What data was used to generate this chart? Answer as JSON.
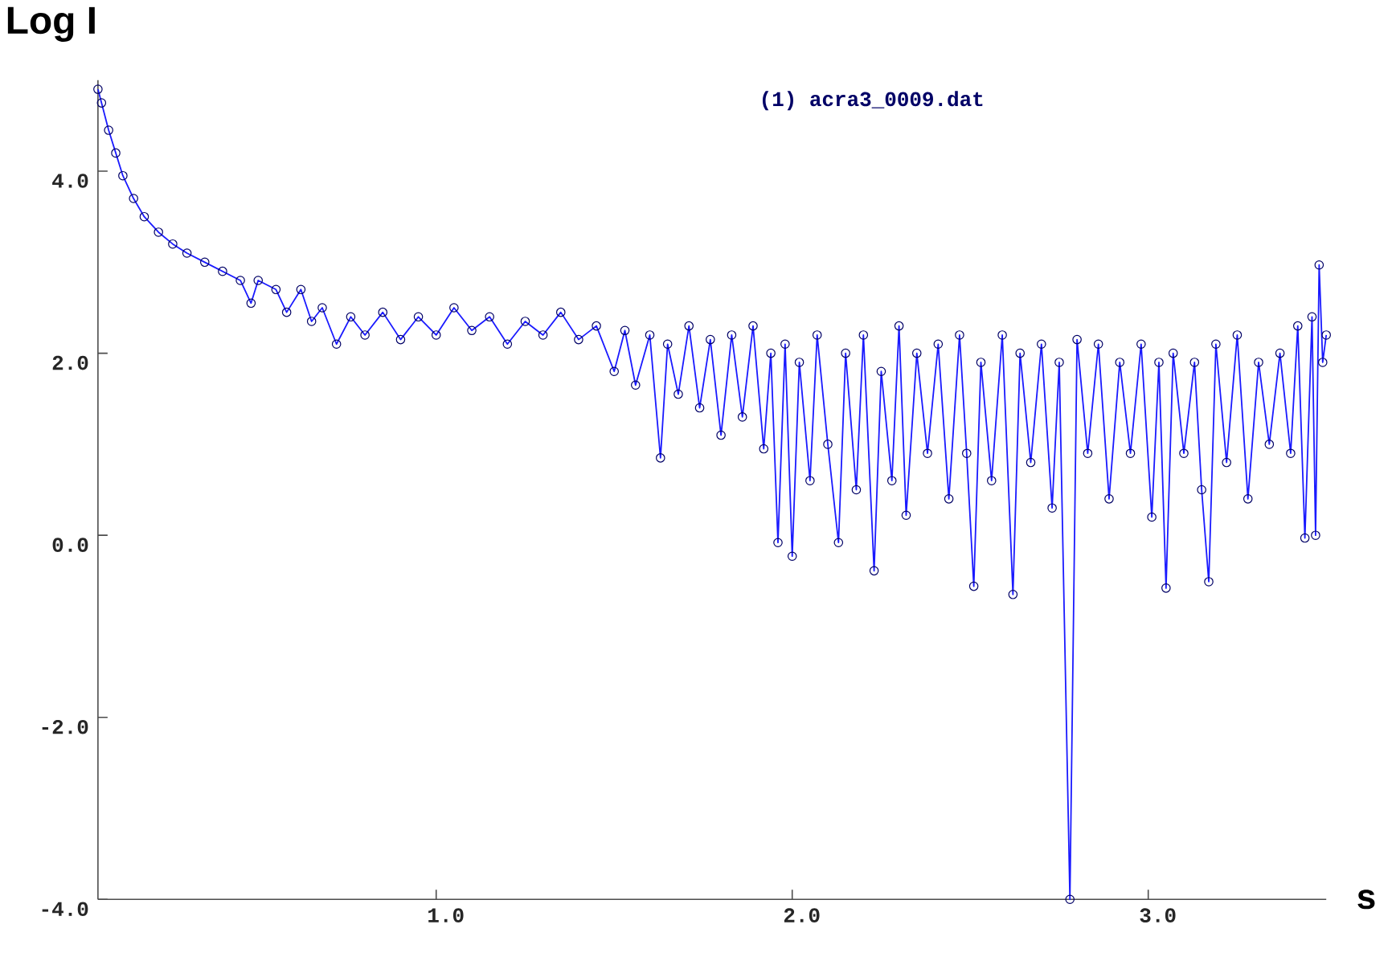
{
  "chart_data": {
    "type": "line",
    "xlabel": "s",
    "ylabel": "Log I",
    "xlim": [
      0.05,
      3.5
    ],
    "ylim": [
      -4.0,
      5.0
    ],
    "xticks": [
      {
        "value": 1,
        "label": "1.0"
      },
      {
        "value": 2,
        "label": "2.0"
      },
      {
        "value": 3,
        "label": "3.0"
      }
    ],
    "yticks": [
      {
        "value": -4,
        "label": "-4.0"
      },
      {
        "value": -2,
        "label": "-2.0"
      },
      {
        "value": 0,
        "label": "0.0"
      },
      {
        "value": 2,
        "label": "2.0"
      },
      {
        "value": 4,
        "label": "4.0"
      }
    ],
    "grid": false,
    "legend": "top",
    "marker": "circle",
    "line_style": "solid",
    "series": [
      {
        "name": "(1) acra3_0009.dat",
        "color": "#1a1aff",
        "x": [
          0.05,
          0.06,
          0.08,
          0.1,
          0.12,
          0.15,
          0.18,
          0.22,
          0.26,
          0.3,
          0.35,
          0.4,
          0.45,
          0.48,
          0.5,
          0.55,
          0.58,
          0.62,
          0.65,
          0.68,
          0.72,
          0.76,
          0.8,
          0.85,
          0.9,
          0.95,
          1.0,
          1.05,
          1.1,
          1.15,
          1.2,
          1.25,
          1.3,
          1.35,
          1.4,
          1.45,
          1.5,
          1.53,
          1.56,
          1.6,
          1.63,
          1.65,
          1.68,
          1.71,
          1.74,
          1.77,
          1.8,
          1.83,
          1.86,
          1.89,
          1.92,
          1.94,
          1.96,
          1.98,
          2.0,
          2.02,
          2.05,
          2.07,
          2.1,
          2.13,
          2.15,
          2.18,
          2.2,
          2.23,
          2.25,
          2.28,
          2.3,
          2.32,
          2.35,
          2.38,
          2.41,
          2.44,
          2.47,
          2.49,
          2.51,
          2.53,
          2.56,
          2.59,
          2.62,
          2.64,
          2.67,
          2.7,
          2.73,
          2.75,
          2.78,
          2.8,
          2.83,
          2.86,
          2.89,
          2.92,
          2.95,
          2.98,
          3.01,
          3.03,
          3.05,
          3.07,
          3.1,
          3.13,
          3.15,
          3.17,
          3.19,
          3.22,
          3.25,
          3.28,
          3.31,
          3.34,
          3.37,
          3.4,
          3.42,
          3.44,
          3.46,
          3.47,
          3.48,
          3.49,
          3.5
        ],
        "values": [
          4.9,
          4.75,
          4.45,
          4.2,
          3.95,
          3.7,
          3.5,
          3.33,
          3.2,
          3.1,
          3.0,
          2.9,
          2.8,
          2.55,
          2.8,
          2.7,
          2.45,
          2.7,
          2.35,
          2.5,
          2.1,
          2.4,
          2.2,
          2.45,
          2.15,
          2.4,
          2.2,
          2.5,
          2.25,
          2.4,
          2.1,
          2.35,
          2.2,
          2.45,
          2.15,
          2.3,
          1.8,
          2.25,
          1.65,
          2.2,
          0.85,
          2.1,
          1.55,
          2.3,
          1.4,
          2.15,
          1.1,
          2.2,
          1.3,
          2.3,
          0.95,
          2.0,
          -0.08,
          2.1,
          -0.23,
          1.9,
          0.6,
          2.2,
          1.0,
          -0.08,
          2.0,
          0.5,
          2.2,
          -0.39,
          1.8,
          0.6,
          2.3,
          0.22,
          2.0,
          0.9,
          2.1,
          0.4,
          2.2,
          0.9,
          -0.56,
          1.9,
          0.6,
          2.2,
          -0.65,
          2.0,
          0.8,
          2.1,
          0.3,
          1.9,
          -4.0,
          2.15,
          0.9,
          2.1,
          0.4,
          1.9,
          0.9,
          2.1,
          0.2,
          1.9,
          -0.58,
          2.0,
          0.9,
          1.9,
          0.5,
          -0.51,
          2.1,
          0.8,
          2.2,
          0.4,
          1.9,
          1.0,
          2.0,
          0.9,
          2.3,
          -0.03,
          2.4,
          0.0,
          2.97,
          1.9,
          2.2
        ]
      }
    ]
  }
}
